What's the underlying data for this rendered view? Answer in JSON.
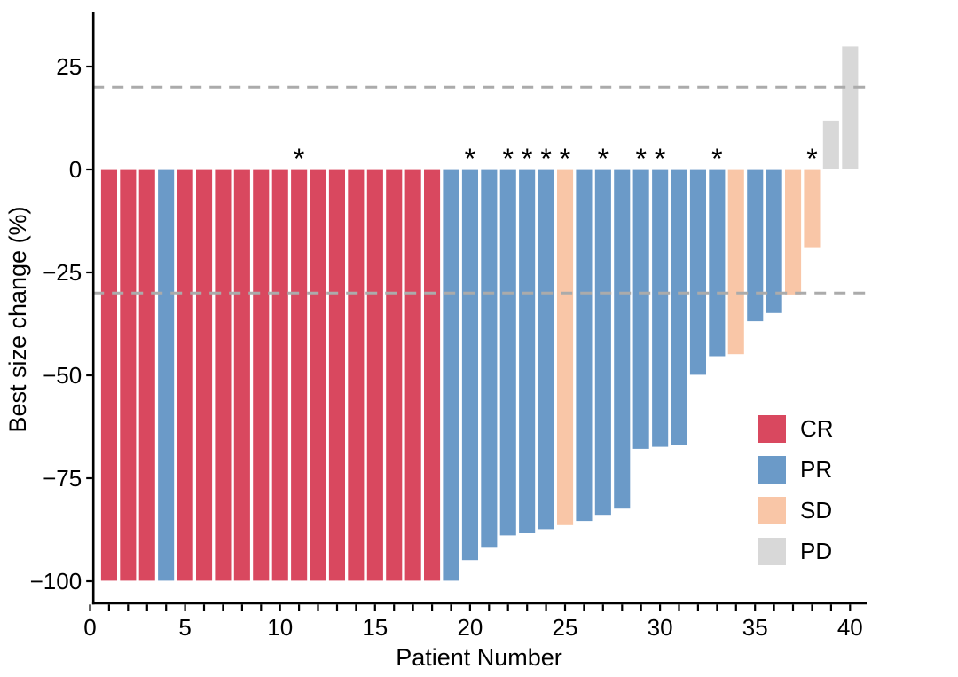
{
  "figure": {
    "background": "#ffffff",
    "axis_color": "#000000"
  },
  "chart_data": {
    "type": "bar",
    "subtype": "waterfall",
    "title": "",
    "xlabel": "Patient Number",
    "ylabel": "Best size change (%)",
    "x_axis": {
      "min": 0,
      "max": 40,
      "minor_tick_every": 1,
      "labeled_ticks": [
        0,
        5,
        10,
        15,
        20,
        25,
        30,
        35,
        40
      ]
    },
    "y_axis": {
      "ticks": [
        25,
        0,
        -25,
        -50,
        -75,
        -100
      ],
      "range": [
        -105,
        33
      ]
    },
    "reference_lines": {
      "values": [
        20,
        -30
      ],
      "style": "dashed",
      "color": "#ABABAB"
    },
    "annotation_symbol": "*",
    "legend": {
      "position": "right-middle",
      "entries": [
        {
          "label": "CR",
          "color": "#D9485F"
        },
        {
          "label": "PR",
          "color": "#6B9AC8"
        },
        {
          "label": "SD",
          "color": "#F9C6A7"
        },
        {
          "label": "PD",
          "color": "#D8D8D8"
        }
      ]
    },
    "patients": [
      {
        "n": 1,
        "value": -100,
        "response": "CR",
        "star": false
      },
      {
        "n": 2,
        "value": -100,
        "response": "CR",
        "star": false
      },
      {
        "n": 3,
        "value": -100,
        "response": "CR",
        "star": false
      },
      {
        "n": 4,
        "value": -100,
        "response": "PR",
        "star": false
      },
      {
        "n": 5,
        "value": -100,
        "response": "CR",
        "star": false
      },
      {
        "n": 6,
        "value": -100,
        "response": "CR",
        "star": false
      },
      {
        "n": 7,
        "value": -100,
        "response": "CR",
        "star": false
      },
      {
        "n": 8,
        "value": -100,
        "response": "CR",
        "star": false
      },
      {
        "n": 9,
        "value": -100,
        "response": "CR",
        "star": false
      },
      {
        "n": 10,
        "value": -100,
        "response": "CR",
        "star": false
      },
      {
        "n": 11,
        "value": -100,
        "response": "CR",
        "star": true
      },
      {
        "n": 12,
        "value": -100,
        "response": "CR",
        "star": false
      },
      {
        "n": 13,
        "value": -100,
        "response": "CR",
        "star": false
      },
      {
        "n": 14,
        "value": -100,
        "response": "CR",
        "star": false
      },
      {
        "n": 15,
        "value": -100,
        "response": "CR",
        "star": false
      },
      {
        "n": 16,
        "value": -100,
        "response": "CR",
        "star": false
      },
      {
        "n": 17,
        "value": -100,
        "response": "CR",
        "star": false
      },
      {
        "n": 18,
        "value": -100,
        "response": "CR",
        "star": false
      },
      {
        "n": 19,
        "value": -100,
        "response": "PR",
        "star": false
      },
      {
        "n": 20,
        "value": -95,
        "response": "PR",
        "star": true
      },
      {
        "n": 21,
        "value": -92,
        "response": "PR",
        "star": false
      },
      {
        "n": 22,
        "value": -89,
        "response": "PR",
        "star": true
      },
      {
        "n": 23,
        "value": -88.5,
        "response": "PR",
        "star": true
      },
      {
        "n": 24,
        "value": -87.5,
        "response": "PR",
        "star": true
      },
      {
        "n": 25,
        "value": -86.5,
        "response": "SD",
        "star": true
      },
      {
        "n": 26,
        "value": -85.5,
        "response": "PR",
        "star": false
      },
      {
        "n": 27,
        "value": -84,
        "response": "PR",
        "star": true
      },
      {
        "n": 28,
        "value": -82.5,
        "response": "PR",
        "star": false
      },
      {
        "n": 29,
        "value": -68,
        "response": "PR",
        "star": true
      },
      {
        "n": 30,
        "value": -67.5,
        "response": "PR",
        "star": true
      },
      {
        "n": 31,
        "value": -67,
        "response": "PR",
        "star": false
      },
      {
        "n": 32,
        "value": -50,
        "response": "PR",
        "star": false
      },
      {
        "n": 33,
        "value": -45.5,
        "response": "PR",
        "star": true
      },
      {
        "n": 34,
        "value": -45,
        "response": "SD",
        "star": false
      },
      {
        "n": 35,
        "value": -37,
        "response": "PR",
        "star": false
      },
      {
        "n": 36,
        "value": -35,
        "response": "PR",
        "star": false
      },
      {
        "n": 37,
        "value": -30.5,
        "response": "SD",
        "star": false
      },
      {
        "n": 38,
        "value": -19,
        "response": "SD",
        "star": true
      },
      {
        "n": 39,
        "value": 12,
        "response": "PD",
        "star": false
      },
      {
        "n": 40,
        "value": 30,
        "response": "PD",
        "star": false
      }
    ]
  }
}
